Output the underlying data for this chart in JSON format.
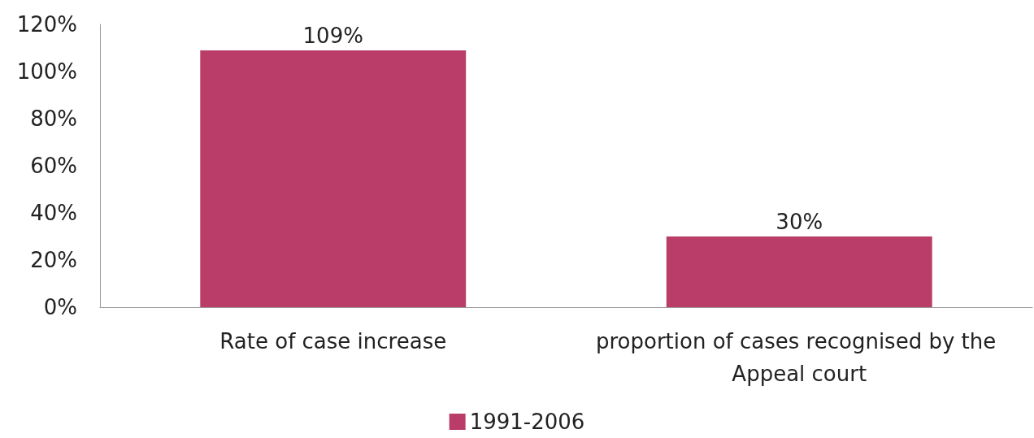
{
  "chart_data": {
    "type": "bar",
    "categories": [
      "Rate of case increase",
      "proportion of cases recognised by the Appeal court"
    ],
    "series": [
      {
        "name": "1991-2006",
        "color": "#b93d68",
        "values": [
          109,
          30
        ],
        "value_labels": [
          "109%",
          "30%"
        ]
      }
    ],
    "ylim": [
      0,
      120
    ],
    "yticks": [
      {
        "value": 0,
        "label": "0%"
      },
      {
        "value": 20,
        "label": "20%"
      },
      {
        "value": 40,
        "label": "40%"
      },
      {
        "value": 60,
        "label": "60%"
      },
      {
        "value": 80,
        "label": "80%"
      },
      {
        "value": 100,
        "label": "100%"
      },
      {
        "value": 120,
        "label": "120%"
      }
    ],
    "grid": false,
    "legend": "bottom"
  }
}
